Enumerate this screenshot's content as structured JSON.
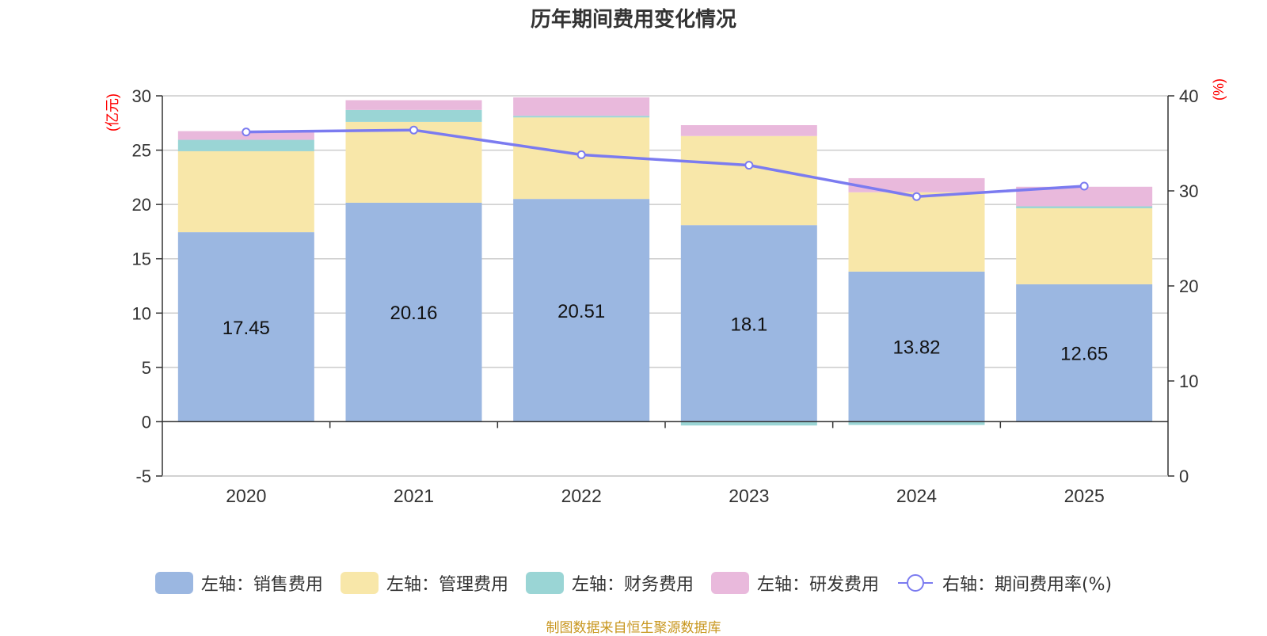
{
  "chart_data": {
    "type": "bar",
    "title": "历年期间费用变化情况",
    "categories": [
      "2020",
      "2021",
      "2022",
      "2023",
      "2024",
      "2025"
    ],
    "left_axis": {
      "label": "(亿元)",
      "ylim": [
        -5,
        30
      ],
      "ticks": [
        30,
        25,
        20,
        15,
        10,
        5,
        0,
        -5
      ]
    },
    "right_axis": {
      "label": "(%)",
      "ylim": [
        0,
        40
      ],
      "ticks": [
        40,
        30,
        20,
        10,
        0
      ]
    },
    "series": [
      {
        "name": "左轴：销售费用",
        "stacked": true,
        "color": "#9bb7e1",
        "values": [
          17.45,
          20.16,
          20.51,
          18.1,
          13.82,
          12.65
        ],
        "show_labels": true
      },
      {
        "name": "左轴：管理费用",
        "stacked": true,
        "color": "#f8e7a9",
        "values": [
          7.45,
          7.44,
          7.5,
          8.2,
          7.3,
          7.0
        ]
      },
      {
        "name": "左轴：财务费用",
        "stacked": true,
        "color": "#9ad5d5",
        "values": [
          1.05,
          1.1,
          0.15,
          -0.35,
          -0.3,
          0.18
        ]
      },
      {
        "name": "左轴：研发费用",
        "stacked": true,
        "color": "#e9b9dc",
        "values": [
          0.8,
          0.9,
          1.7,
          1.0,
          1.3,
          1.8
        ]
      },
      {
        "name": "右轴：期间费用率(%)",
        "type": "line",
        "axis": "right",
        "color": "#7b7bf0",
        "values": [
          36.2,
          36.4,
          33.8,
          32.7,
          29.4,
          30.5
        ]
      }
    ],
    "grid": true,
    "legend_position": "bottom"
  },
  "source": "制图数据来自恒生聚源数据库"
}
